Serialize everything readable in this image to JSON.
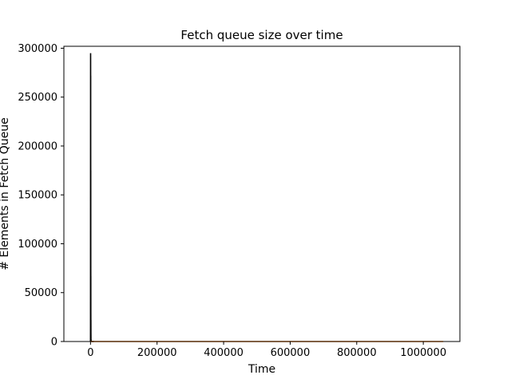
{
  "chart_data": {
    "type": "line",
    "title": "Fetch queue size over time",
    "xlabel": "Time",
    "ylabel": "# Elements in Fetch Queue",
    "xlim": [
      -80000,
      1110000
    ],
    "ylim": [
      0,
      302000
    ],
    "xticks": [
      0,
      200000,
      400000,
      600000,
      800000,
      1000000
    ],
    "yticks": [
      0,
      50000,
      100000,
      150000,
      200000,
      250000,
      300000
    ],
    "grid": false,
    "legend": "none",
    "series": [
      {
        "color": "#000000",
        "x": [
          0,
          50,
          100,
          150,
          200,
          250,
          300,
          350,
          400,
          450,
          500,
          550,
          600,
          650,
          700,
          750,
          800,
          850,
          900,
          950,
          1000,
          1100,
          1200,
          1300,
          1400,
          1500,
          1700,
          2000,
          2500,
          3000,
          5000,
          10000
        ],
        "y": [
          0,
          18000,
          76000,
          143000,
          208000,
          262000,
          295000,
          289000,
          276000,
          248000,
          231000,
          272000,
          201000,
          165000,
          122000,
          175000,
          96000,
          71000,
          48000,
          67000,
          30000,
          14000,
          22000,
          8000,
          4000,
          2500,
          1200,
          600,
          300,
          150,
          50,
          0
        ]
      },
      {
        "color": "#ff7f0e",
        "x": [
          0,
          1060000
        ],
        "y": [
          0,
          0
        ]
      }
    ]
  }
}
